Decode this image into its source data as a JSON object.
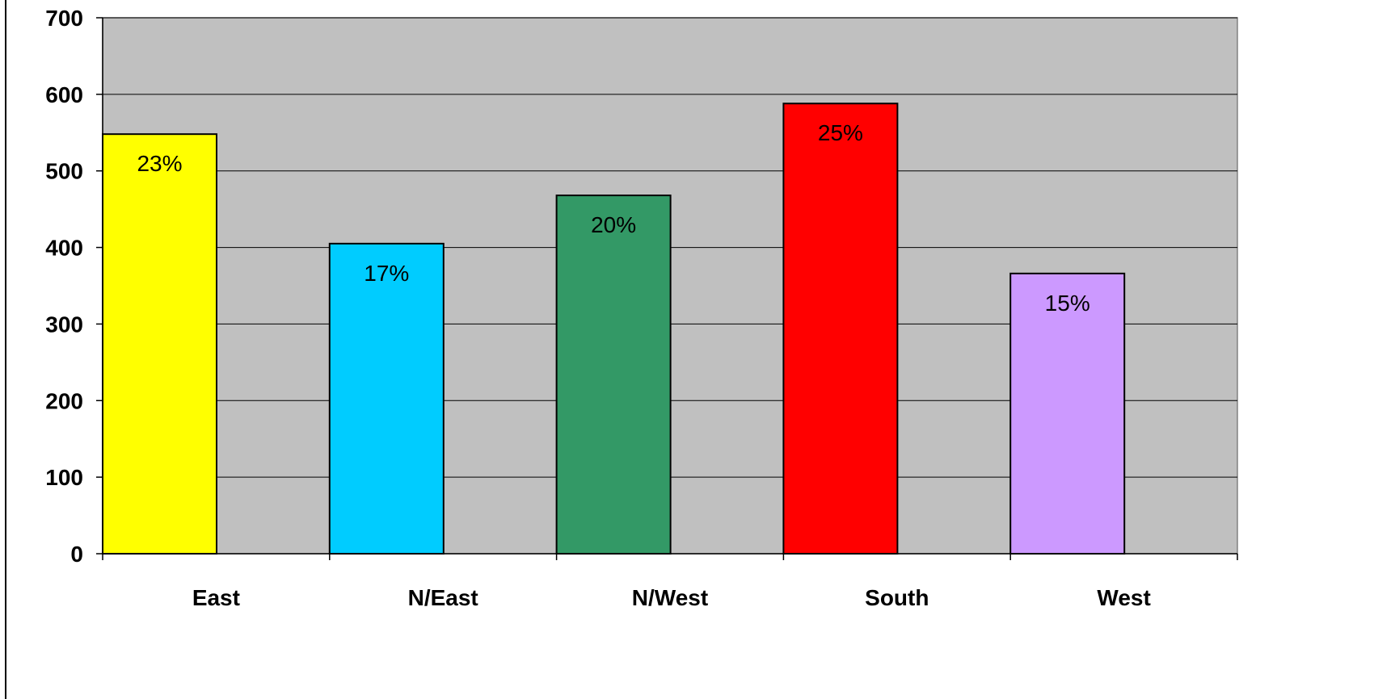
{
  "chart_data": {
    "type": "bar",
    "title": "",
    "xlabel": "",
    "ylabel": "",
    "categories": [
      "East",
      "N/East",
      "N/West",
      "South",
      "West"
    ],
    "values": [
      548,
      405,
      468,
      588,
      366
    ],
    "data_labels": [
      "23%",
      "17%",
      "20%",
      "25%",
      "15%"
    ],
    "colors": [
      "#FFFF00",
      "#00CCFF",
      "#339966",
      "#FF0000",
      "#CC99FF"
    ],
    "plot_background": "#C0C0C0",
    "ylim": [
      0,
      700
    ],
    "yticks": [
      0,
      100,
      200,
      300,
      400,
      500,
      600,
      700
    ],
    "ytick_labels": [
      "0",
      "100",
      "200",
      "300",
      "400",
      "500",
      "600",
      "700"
    ],
    "grid": true,
    "legend": "none"
  }
}
